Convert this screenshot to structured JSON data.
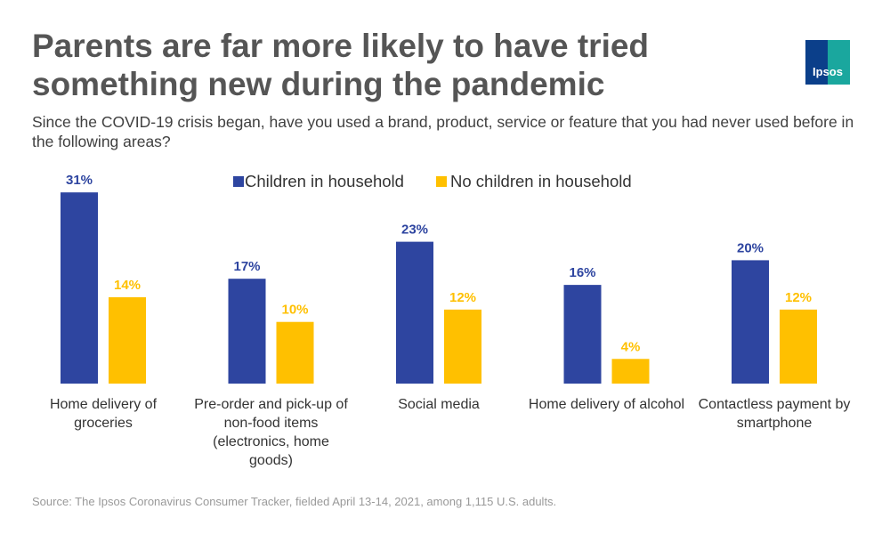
{
  "chart_data": {
    "type": "bar",
    "title": "Parents are far more likely to have tried something new during the pandemic",
    "subtitle": "Since the COVID-19 crisis began, have you used a brand, product, service or feature that you had never used before in the following areas?",
    "categories": [
      "Home delivery of groceries",
      "Pre-order and pick-up of non-food items (electronics, home goods)",
      "Social media",
      "Home delivery of alcohol",
      "Contactless payment by smartphone"
    ],
    "series": [
      {
        "name": "Children in household",
        "color": "#2e45a0",
        "values": [
          31,
          17,
          23,
          16,
          20
        ],
        "value_labels": [
          "31%",
          "17%",
          "23%",
          "16%",
          "20%"
        ]
      },
      {
        "name": "No children in household",
        "color": "#ffc000",
        "values": [
          14,
          10,
          12,
          4,
          12
        ],
        "value_labels": [
          "14%",
          "10%",
          "12%",
          "4%",
          "12%"
        ]
      }
    ],
    "source": "Source: The Ipsos Coronavirus Consumer Tracker, fielded April 13-14, 2021, among 1,115 U.S. adults.",
    "logo": "Ipsos"
  }
}
